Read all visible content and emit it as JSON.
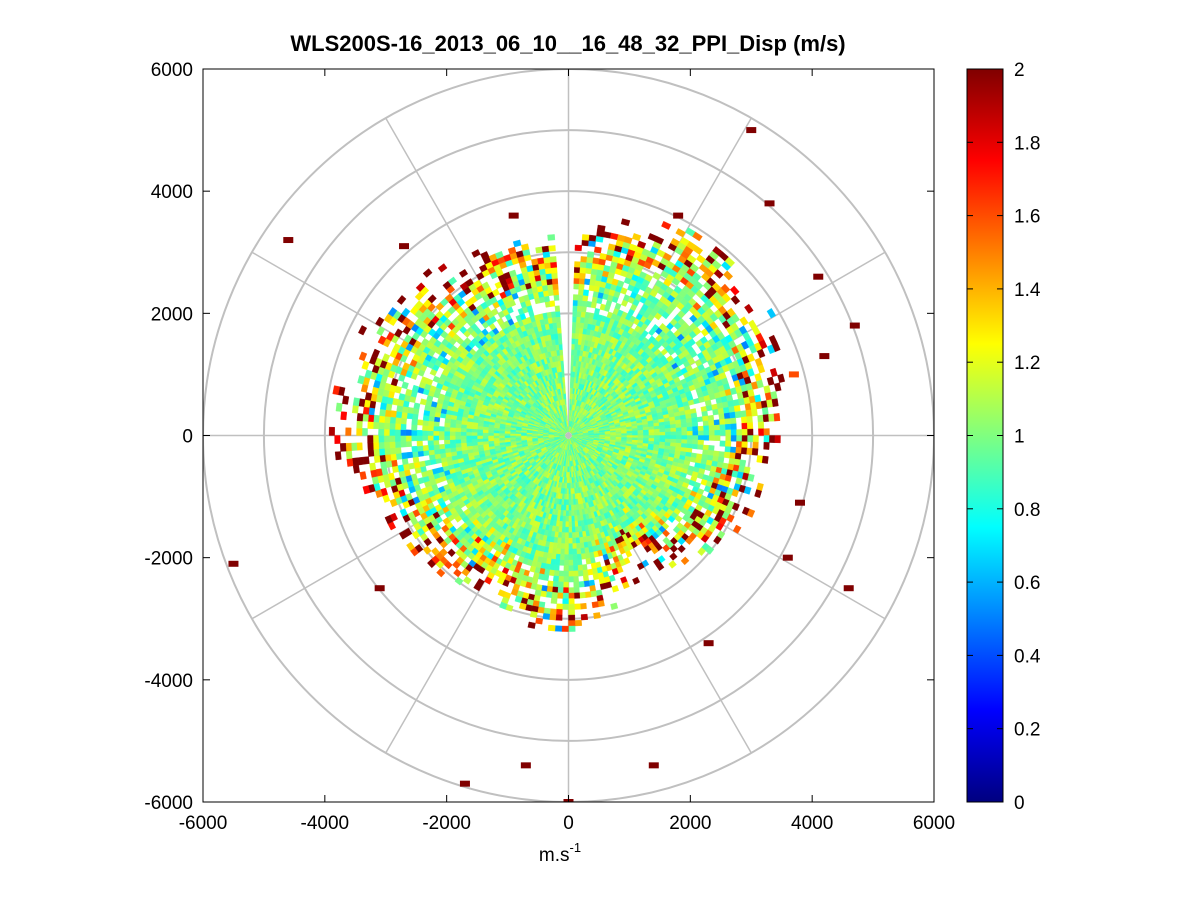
{
  "chart_data": {
    "type": "heatmap",
    "subtype": "ppi-polar-scan",
    "title": "WLS200S-16_2013_06_10__16_48_32_PPI_Disp (m/s)",
    "xlabel_base": "m.s",
    "xlabel_exp": "-1",
    "ylabel": "",
    "xlim": [
      -6000,
      6000
    ],
    "ylim": [
      -6000,
      6000
    ],
    "x_ticks": [
      -6000,
      -4000,
      -2000,
      0,
      2000,
      4000,
      6000
    ],
    "y_ticks": [
      -6000,
      -4000,
      -2000,
      0,
      2000,
      4000,
      6000
    ],
    "x_tick_labels": [
      "-6000",
      "-4000",
      "-2000",
      "0",
      "2000",
      "4000",
      "6000"
    ],
    "y_tick_labels": [
      "-6000",
      "-4000",
      "-2000",
      "0",
      "2000",
      "4000",
      "6000"
    ],
    "range_rings": [
      1000,
      2000,
      3000,
      4000,
      5000,
      6000
    ],
    "spokes_deg": [
      0,
      30,
      60,
      90,
      120,
      150,
      180,
      210,
      240,
      270,
      300,
      330
    ],
    "grid": true,
    "colorbar": {
      "min": 0,
      "max": 2,
      "ticks": [
        0,
        0.2,
        0.4,
        0.6,
        0.8,
        1,
        1.2,
        1.4,
        1.6,
        1.8,
        2
      ],
      "tick_labels": [
        "0",
        "0.2",
        "0.4",
        "0.6",
        "0.8",
        "1",
        "1.2",
        "1.4",
        "1.6",
        "1.8",
        "2"
      ],
      "colormap": "jet",
      "placement": "right"
    },
    "field": {
      "typical_value": 1.0,
      "inner_range_m": 2000,
      "outer_edge_range_by_azimuth_deg": [
        [
          0,
          3000
        ],
        [
          30,
          3700
        ],
        [
          60,
          3600
        ],
        [
          90,
          3200
        ],
        [
          120,
          2900
        ],
        [
          150,
          2200
        ],
        [
          180,
          3100
        ],
        [
          210,
          2700
        ],
        [
          240,
          3000
        ],
        [
          270,
          3600
        ],
        [
          300,
          3400
        ],
        [
          330,
          3000
        ],
        [
          360,
          3000
        ]
      ],
      "edge_high_values_near": 2.0
    },
    "outlier_points": [
      {
        "x": 3000,
        "y": 5000,
        "value": 2.0
      },
      {
        "x": -4600,
        "y": 3200,
        "value": 2.0
      },
      {
        "x": -5500,
        "y": -2100,
        "value": 2.0
      },
      {
        "x": 4600,
        "y": -2500,
        "value": 2.0
      },
      {
        "x": 3300,
        "y": 3800,
        "value": 2.0
      },
      {
        "x": 4100,
        "y": 2600,
        "value": 2.0
      },
      {
        "x": 4700,
        "y": 1800,
        "value": 2.0
      },
      {
        "x": 4200,
        "y": 1300,
        "value": 2.0
      },
      {
        "x": 3700,
        "y": 1000,
        "value": 1.6
      },
      {
        "x": -3100,
        "y": -2500,
        "value": 2.0
      },
      {
        "x": -1700,
        "y": -5700,
        "value": 2.0
      },
      {
        "x": -700,
        "y": -5400,
        "value": 2.0
      },
      {
        "x": 1400,
        "y": -5400,
        "value": 2.0
      },
      {
        "x": 2300,
        "y": -3400,
        "value": 2.0
      },
      {
        "x": 0,
        "y": -6000,
        "value": 2.0
      },
      {
        "x": -900,
        "y": 3600,
        "value": 2.0
      },
      {
        "x": -2700,
        "y": 3100,
        "value": 2.0
      },
      {
        "x": 1800,
        "y": 3600,
        "value": 2.0
      },
      {
        "x": 3600,
        "y": -2000,
        "value": 2.0
      },
      {
        "x": 3800,
        "y": -1100,
        "value": 2.0
      }
    ]
  }
}
